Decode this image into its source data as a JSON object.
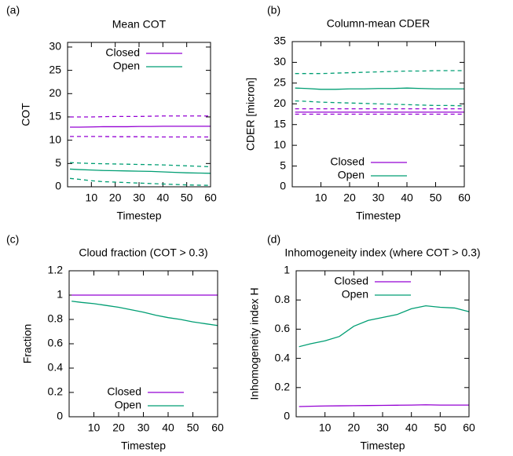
{
  "chart_data": [
    {
      "type": "line",
      "label": "(a)",
      "title": "Mean COT",
      "x_label": "Timestep",
      "y_label": "COT",
      "x": [
        1,
        5,
        10,
        15,
        20,
        25,
        30,
        35,
        40,
        45,
        50,
        55,
        60
      ],
      "xlim": [
        0,
        60
      ],
      "ylim": [
        0,
        31
      ],
      "xticks": [
        10,
        20,
        30,
        40,
        50,
        60
      ],
      "yticks": [
        0,
        5,
        10,
        15,
        20,
        25,
        30
      ],
      "legend": "top-left",
      "series": [
        {
          "name": "Closed",
          "color": "#9400d3",
          "values": [
            12.8,
            12.8,
            12.85,
            12.9,
            12.9,
            12.9,
            12.95,
            12.95,
            13.0,
            13.0,
            13.0,
            13.0,
            13.0
          ]
        },
        {
          "name": "Open",
          "color": "#009e73",
          "values": [
            3.8,
            3.7,
            3.6,
            3.5,
            3.45,
            3.4,
            3.35,
            3.3,
            3.2,
            3.1,
            3.0,
            2.95,
            2.9
          ]
        },
        {
          "color": "#9400d3",
          "dashed": true,
          "values": [
            15.0,
            15.0,
            15.0,
            15.05,
            15.1,
            15.1,
            15.1,
            15.15,
            15.2,
            15.2,
            15.2,
            15.2,
            15.2
          ]
        },
        {
          "color": "#9400d3",
          "dashed": true,
          "values": [
            10.8,
            10.8,
            10.8,
            10.8,
            10.75,
            10.75,
            10.75,
            10.7,
            10.7,
            10.7,
            10.7,
            10.7,
            10.7
          ]
        },
        {
          "color": "#009e73",
          "dashed": true,
          "values": [
            5.2,
            5.1,
            5.0,
            4.95,
            4.9,
            4.85,
            4.8,
            4.75,
            4.7,
            4.6,
            4.5,
            4.4,
            4.3
          ]
        },
        {
          "color": "#009e73",
          "dashed": true,
          "values": [
            1.8,
            1.6,
            1.3,
            1.1,
            1.0,
            0.9,
            0.8,
            0.7,
            0.6,
            0.5,
            0.4,
            0.35,
            0.3
          ]
        }
      ]
    },
    {
      "type": "line",
      "label": "(b)",
      "title": "Column-mean CDER",
      "x_label": "Timestep",
      "y_label": "CDER [micron]",
      "x": [
        1,
        5,
        10,
        15,
        20,
        25,
        30,
        35,
        40,
        45,
        50,
        55,
        60
      ],
      "xlim": [
        0,
        60
      ],
      "ylim": [
        0,
        35
      ],
      "xticks": [
        10,
        20,
        30,
        40,
        50,
        60
      ],
      "yticks": [
        0,
        5,
        10,
        15,
        20,
        25,
        30,
        35
      ],
      "legend": "bottom-left",
      "series": [
        {
          "name": "Closed",
          "color": "#9400d3",
          "values": [
            18.0,
            18.0,
            18.0,
            18.0,
            18.0,
            18.0,
            18.0,
            18.0,
            18.0,
            18.0,
            18.0,
            18.0,
            18.0
          ]
        },
        {
          "name": "Open",
          "color": "#009e73",
          "values": [
            23.8,
            23.7,
            23.5,
            23.5,
            23.6,
            23.6,
            23.7,
            23.7,
            23.8,
            23.7,
            23.6,
            23.6,
            23.6
          ]
        },
        {
          "color": "#9400d3",
          "dashed": true,
          "values": [
            18.8,
            18.8,
            18.8,
            18.8,
            18.8,
            18.8,
            18.8,
            18.8,
            18.8,
            18.8,
            18.8,
            18.8,
            18.8
          ]
        },
        {
          "color": "#9400d3",
          "dashed": true,
          "values": [
            17.5,
            17.5,
            17.5,
            17.5,
            17.5,
            17.5,
            17.5,
            17.5,
            17.5,
            17.5,
            17.5,
            17.5,
            17.5
          ]
        },
        {
          "color": "#009e73",
          "dashed": true,
          "values": [
            27.3,
            27.3,
            27.3,
            27.4,
            27.5,
            27.6,
            27.7,
            27.8,
            27.9,
            27.9,
            28.0,
            28.0,
            28.0
          ]
        },
        {
          "color": "#009e73",
          "dashed": true,
          "values": [
            20.7,
            20.6,
            20.4,
            20.3,
            20.2,
            20.1,
            20.0,
            19.9,
            19.8,
            19.7,
            19.6,
            19.6,
            19.5
          ]
        }
      ]
    },
    {
      "type": "line",
      "label": "(c)",
      "title": "Cloud fraction (COT > 0.3)",
      "x_label": "Timestep",
      "y_label": "Fraction",
      "x": [
        1,
        5,
        10,
        15,
        20,
        25,
        30,
        35,
        40,
        45,
        50,
        55,
        60
      ],
      "xlim": [
        0,
        60
      ],
      "ylim": [
        0,
        1.2
      ],
      "xticks": [
        10,
        20,
        30,
        40,
        50,
        60
      ],
      "yticks": [
        0,
        0.2,
        0.4,
        0.6,
        0.8,
        1,
        1.2
      ],
      "legend": "bottom-left",
      "series": [
        {
          "name": "Closed",
          "color": "#9400d3",
          "values": [
            1,
            1,
            1,
            1,
            1,
            1,
            1,
            1,
            1,
            1,
            1,
            1,
            1
          ]
        },
        {
          "name": "Open",
          "color": "#009e73",
          "values": [
            0.95,
            0.94,
            0.93,
            0.915,
            0.9,
            0.88,
            0.86,
            0.835,
            0.815,
            0.8,
            0.78,
            0.765,
            0.75
          ]
        }
      ]
    },
    {
      "type": "line",
      "label": "(d)",
      "title": "Inhomogeneity index (where COT > 0.3)",
      "x_label": "Timestep",
      "y_label": "Inhomogeneity index H",
      "x": [
        1,
        5,
        10,
        15,
        20,
        25,
        30,
        35,
        40,
        45,
        50,
        55,
        60
      ],
      "xlim": [
        0,
        60
      ],
      "ylim": [
        0,
        1
      ],
      "xticks": [
        10,
        20,
        30,
        40,
        50,
        60
      ],
      "yticks": [
        0,
        0.2,
        0.4,
        0.6,
        0.8,
        1
      ],
      "legend": "top-left",
      "series": [
        {
          "name": "Closed",
          "color": "#9400d3",
          "values": [
            0.07,
            0.072,
            0.074,
            0.075,
            0.076,
            0.077,
            0.078,
            0.079,
            0.08,
            0.082,
            0.08,
            0.08,
            0.08
          ]
        },
        {
          "name": "Open",
          "color": "#009e73",
          "values": [
            0.48,
            0.5,
            0.52,
            0.55,
            0.62,
            0.66,
            0.68,
            0.7,
            0.74,
            0.76,
            0.75,
            0.745,
            0.72
          ]
        }
      ]
    }
  ]
}
